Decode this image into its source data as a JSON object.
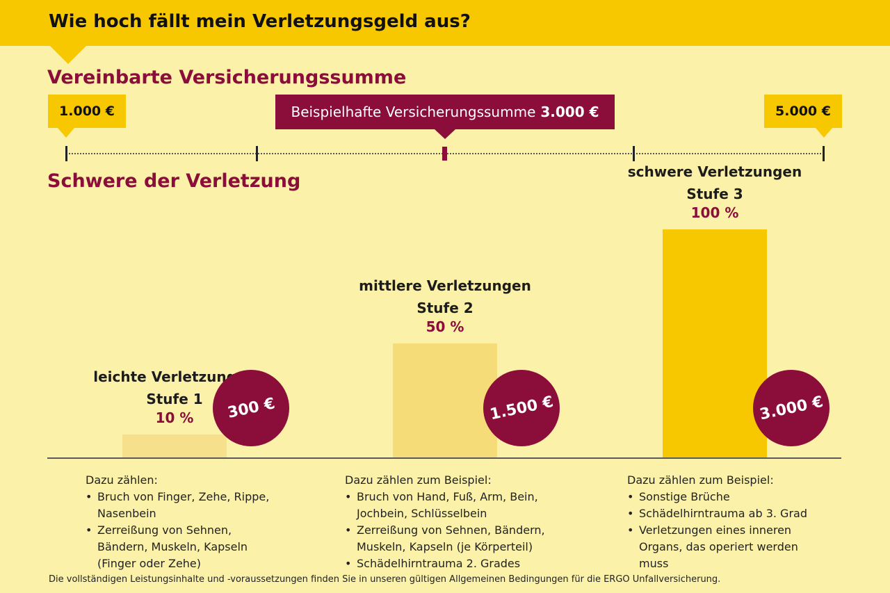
{
  "header": {
    "title": "Wie hoch fällt mein Verletzungsgeld aus?"
  },
  "sum_section": {
    "title": "Vereinbarte Versicherungssumme",
    "min_label": "1.000 €",
    "max_label": "5.000 €",
    "example_label": "Beispielhafte Versicherungssumme",
    "example_value": "3.000 €"
  },
  "severity_section": {
    "title": "Schwere der Verletzung"
  },
  "colors": {
    "accent_red": "#8b0d3a",
    "brand_yellow": "#f7c800",
    "background": "#fbf1a9"
  },
  "chart_data": {
    "type": "bar",
    "categories": [
      "leichte Verletzungen Stufe 1",
      "mittlere Verletzungen Stufe 2",
      "schwere Verletzungen Stufe 3"
    ],
    "values": [
      10,
      50,
      100
    ],
    "unit": "%",
    "ylim": [
      0,
      100
    ],
    "bars": [
      {
        "name_line1": "leichte Verletzungen",
        "name_line2": "Stufe 1",
        "percent": 10,
        "percent_label": "10 %",
        "amount": "300 €",
        "color": "#f7e08c"
      },
      {
        "name_line1": "mittlere Verletzungen",
        "name_line2": "Stufe 2",
        "percent": 50,
        "percent_label": "50 %",
        "amount": "1.500 €",
        "color": "#f6dc78"
      },
      {
        "name_line1": "schwere Verletzungen",
        "name_line2": "Stufe 3",
        "percent": 100,
        "percent_label": "100 %",
        "amount": "3.000 €",
        "color": "#f7c800"
      }
    ]
  },
  "examples": [
    {
      "heading": "Dazu zählen:",
      "items": [
        "Bruch von Finger, Zehe, Rippe, Nasenbein",
        "Zerreißung von Sehnen, Bändern, Muskeln, Kapseln (Finger oder Zehe)"
      ]
    },
    {
      "heading": "Dazu zählen zum Beispiel:",
      "items": [
        "Bruch von Hand, Fuß, Arm, Bein, Jochbein, Schlüsselbein",
        "Zerreißung von Sehnen, Bändern, Muskeln, Kapseln (je Körperteil)",
        "Schädelhirntrauma 2. Grades"
      ]
    },
    {
      "heading": "Dazu zählen zum Beispiel:",
      "items": [
        "Sonstige Brüche",
        "Schädelhirntrauma ab 3. Grad",
        "Verletzungen eines inneren Organs, das operiert werden muss"
      ]
    }
  ],
  "footnote": "Die vollständigen Leistungsinhalte und -voraussetzungen finden Sie in unseren gültigen Allgemeinen Bedingungen für die ERGO Unfallversicherung."
}
